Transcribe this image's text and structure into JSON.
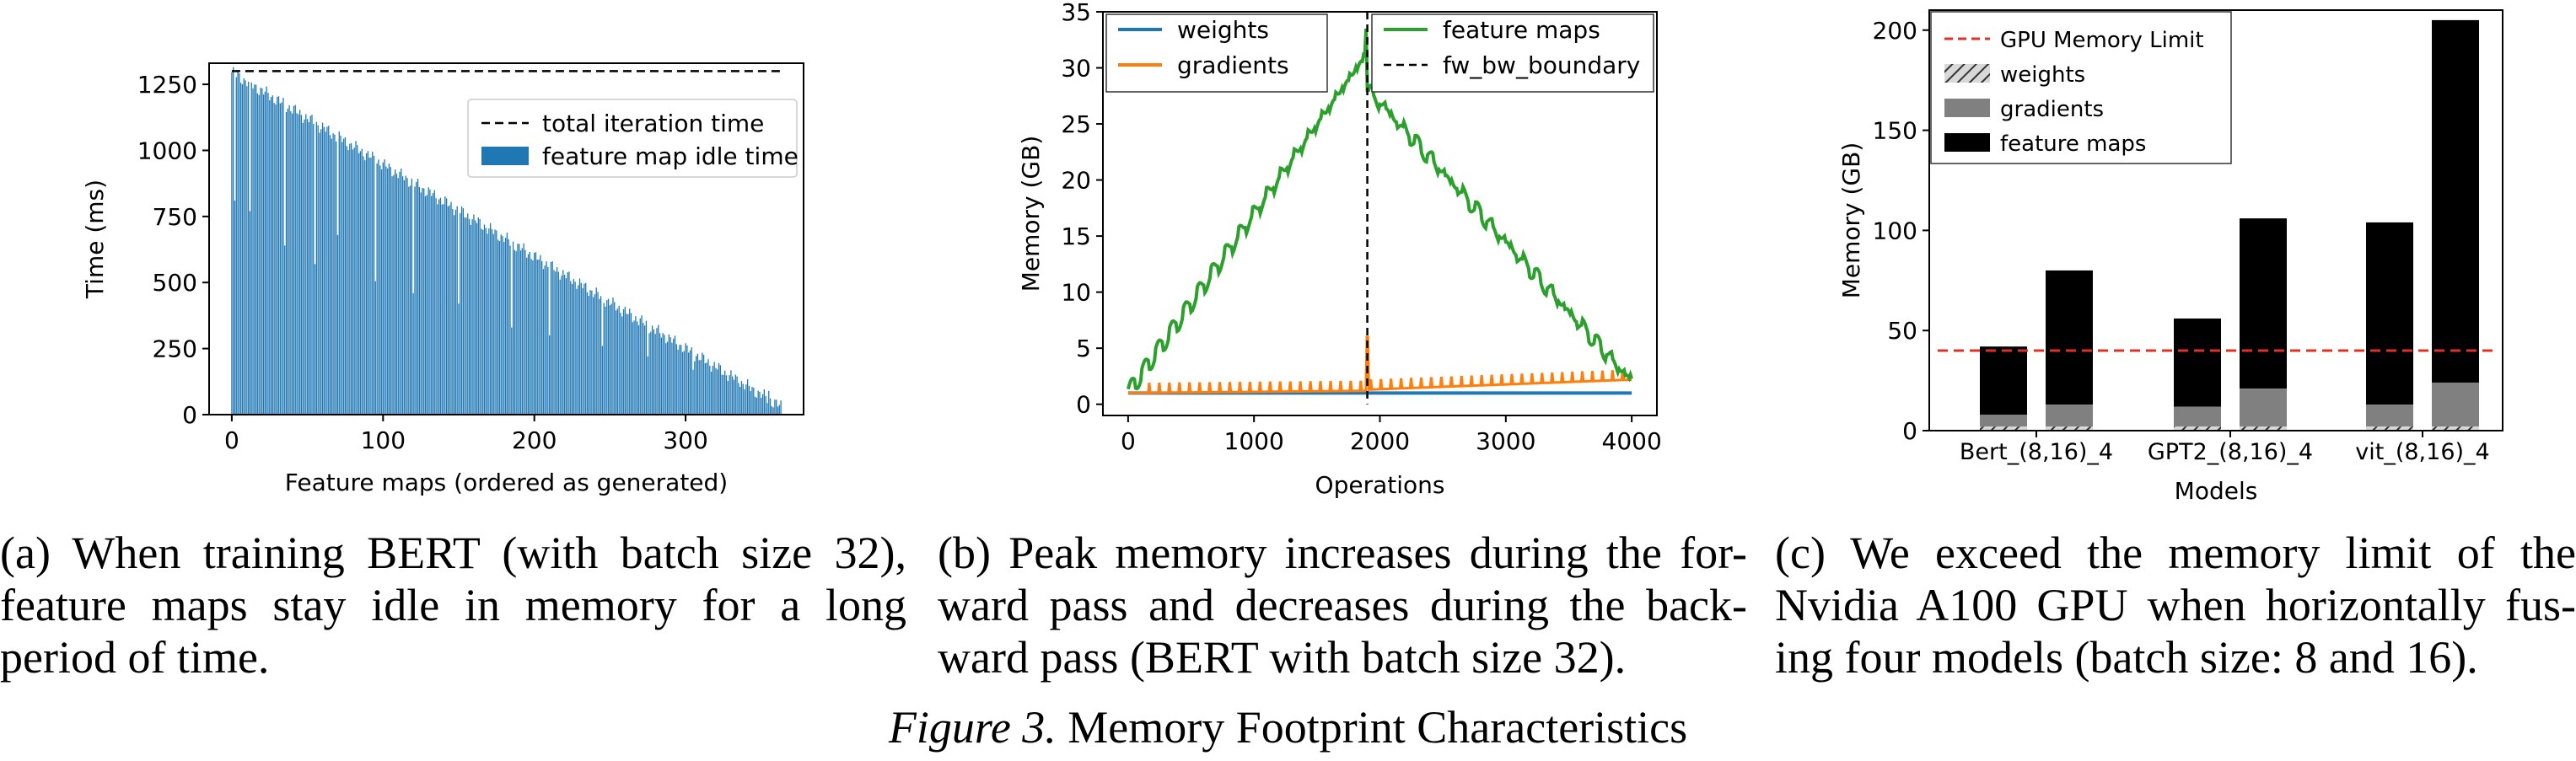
{
  "chart_data": [
    {
      "type": "bar",
      "xlabel": "Feature maps (ordered as generated)",
      "ylabel": "Time (ms)",
      "xlim": [
        -15,
        378
      ],
      "ylim": [
        0,
        1330
      ],
      "xticks": [
        0,
        100,
        200,
        300
      ],
      "yticks": [
        0,
        250,
        500,
        750,
        1000,
        1250
      ],
      "total_iteration_time": 1300,
      "n_bars": 364,
      "idle_start_ms": 1295,
      "idle_end_ms": 30,
      "dips": [
        {
          "index": 2,
          "value": 810
        },
        {
          "index": 12,
          "value": 770
        },
        {
          "index": 35,
          "value": 640
        },
        {
          "index": 55,
          "value": 570
        },
        {
          "index": 70,
          "value": 680
        },
        {
          "index": 95,
          "value": 505
        },
        {
          "index": 120,
          "value": 460
        },
        {
          "index": 150,
          "value": 420
        },
        {
          "index": 185,
          "value": 330
        },
        {
          "index": 210,
          "value": 300
        },
        {
          "index": 245,
          "value": 260
        },
        {
          "index": 275,
          "value": 220
        },
        {
          "index": 305,
          "value": 170
        },
        {
          "index": 335,
          "value": 120
        },
        {
          "index": 355,
          "value": 90
        }
      ],
      "legend": {
        "position": "upper-right",
        "entries": [
          {
            "label": "total iteration time",
            "style": "dashed",
            "color": "#000000"
          },
          {
            "label": "feature map idle time",
            "style": "bar",
            "color": "#1f77b4"
          }
        ]
      }
    },
    {
      "type": "line",
      "xlabel": "Operations",
      "ylabel": "Memory (GB)",
      "xlim": [
        -200,
        4200
      ],
      "ylim": [
        -1,
        35
      ],
      "xticks": [
        0,
        1000,
        2000,
        3000,
        4000
      ],
      "yticks": [
        0,
        5,
        10,
        15,
        20,
        25,
        30,
        35
      ],
      "boundary_x": 1900,
      "series": [
        {
          "name": "weights",
          "color": "#1f77b4",
          "points": [
            [
              0,
              1
            ],
            [
              1900,
              1
            ],
            [
              4000,
              1
            ]
          ]
        },
        {
          "name": "gradients",
          "color": "#ff7f0e",
          "points": [
            [
              0,
              1
            ],
            [
              1880,
              1.2
            ],
            [
              1900,
              6
            ],
            [
              1920,
              1.3
            ],
            [
              4000,
              2.2
            ]
          ]
        },
        {
          "name": "feature maps",
          "color": "#2ca02c",
          "points": [
            [
              0,
              1
            ],
            [
              1880,
              31
            ],
            [
              1895,
              33.5
            ],
            [
              1910,
              28
            ],
            [
              4000,
              2
            ]
          ]
        }
      ],
      "fw_bw_boundary_name": "fw_bw_boundary",
      "legend": {
        "position": "top",
        "entries": [
          {
            "label": "weights",
            "color": "#1f77b4",
            "style": "solid"
          },
          {
            "label": "gradients",
            "color": "#ff7f0e",
            "style": "solid"
          },
          {
            "label": "feature maps",
            "color": "#2ca02c",
            "style": "solid"
          },
          {
            "label": "fw_bw_boundary",
            "color": "#000000",
            "style": "dashed"
          }
        ]
      }
    },
    {
      "type": "bar",
      "stacked": true,
      "xlabel": "Models",
      "ylabel": "Memory (GB)",
      "ylim": [
        0,
        210
      ],
      "yticks": [
        0,
        50,
        100,
        150,
        200
      ],
      "groups": [
        "Bert_(8,16)_4",
        "GPT2_(8,16)_4",
        "vit_(8,16)_4"
      ],
      "bars": [
        {
          "group": 0,
          "weights": 2,
          "gradients": 6,
          "total": 42
        },
        {
          "group": 0,
          "weights": 2,
          "gradients": 11,
          "total": 80
        },
        {
          "group": 1,
          "weights": 2,
          "gradients": 10,
          "total": 56
        },
        {
          "group": 1,
          "weights": 2,
          "gradients": 19,
          "total": 106
        },
        {
          "group": 2,
          "weights": 2,
          "gradients": 11,
          "total": 104
        },
        {
          "group": 2,
          "weights": 2,
          "gradients": 22,
          "total": 205
        }
      ],
      "gpu_memory_limit": 40,
      "legend": {
        "position": "upper-left",
        "entries": [
          {
            "label": "GPU Memory Limit",
            "style": "dashed",
            "color": "#e0302a"
          },
          {
            "label": "weights",
            "style": "hatched",
            "color": "#cccccc"
          },
          {
            "label": "gradients",
            "style": "fill",
            "color": "#808080"
          },
          {
            "label": "feature maps",
            "style": "fill",
            "color": "#000000"
          }
        ]
      }
    }
  ],
  "captions": {
    "a": "(a) When training BERT (with batch size 32), feature maps stay idle in memory for a long period of time.",
    "b": "(b) Peak memory increases during the for-ward pass and decreases during the back-ward pass (BERT with batch size 32).",
    "c": "(c) We exceed the memory limit of the Nvidia A100 GPU when horizontally fus-ing four models (batch size: 8 and 16).",
    "figure_label": "Figure 3.",
    "figure_title": "Memory Footprint Characteristics"
  }
}
